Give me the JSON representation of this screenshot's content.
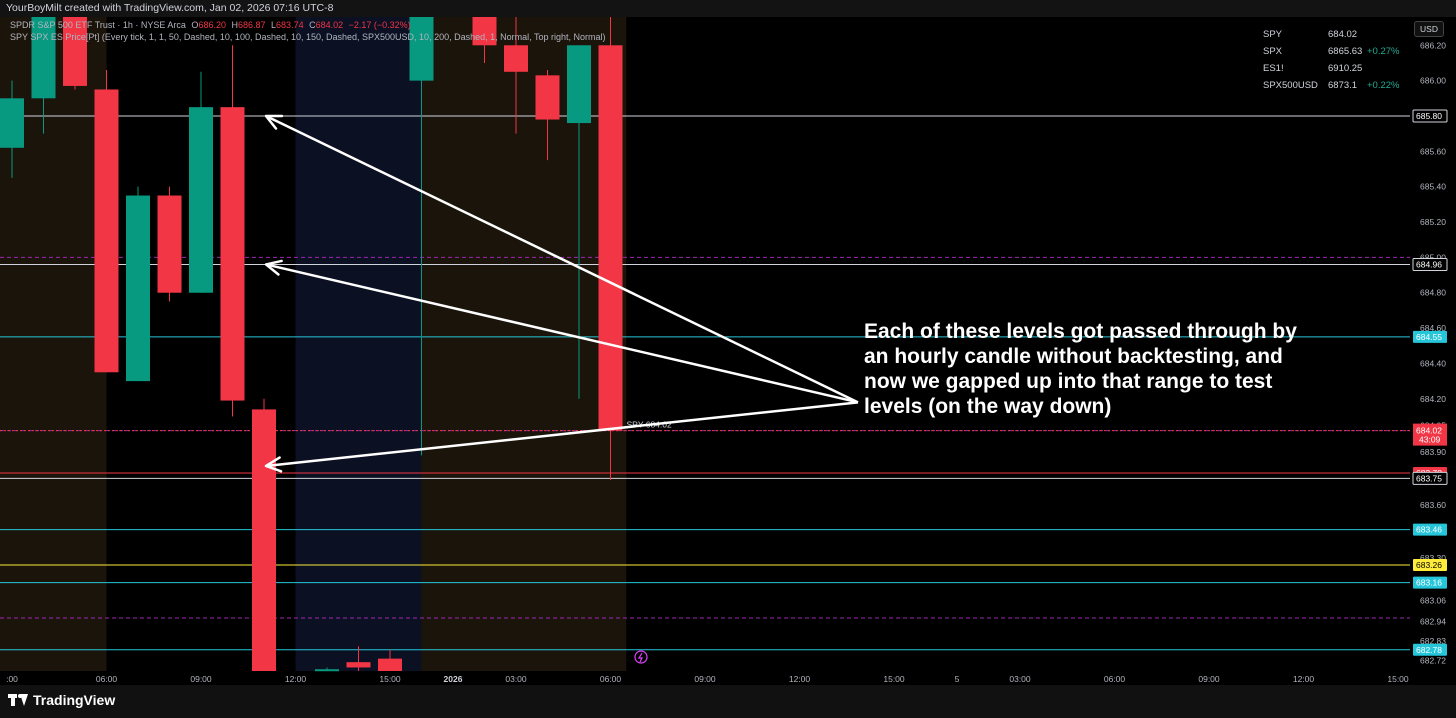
{
  "header": {
    "credit": "YourBoyMilt created with TradingView.com, Jan 02, 2026 07:16 UTC-8"
  },
  "legend": {
    "line1_title": "SPDR S&P 500 ETF Trust · 1h · NYSE Arca",
    "o_label": "O",
    "o": "686.20",
    "h_label": "H",
    "h": "686.87",
    "l_label": "L",
    "l": "683.74",
    "c_label": "C",
    "c": "684.02",
    "change": "−2.17 (−0.32%)",
    "line2": "SPY SPX ES Price[Pt] (Every tick, 1, 1, 50, Dashed, 10, 100, Dashed, 10, 150, Dashed, SPX500USD, 10, 200, Dashed, 1, Normal, Top right, Normal)"
  },
  "watchlist": [
    {
      "symbol": "SPY",
      "price": "684.02",
      "change": ""
    },
    {
      "symbol": "SPX",
      "price": "6865.63",
      "change": "+0.27%"
    },
    {
      "symbol": "ES1!",
      "price": "6910.25",
      "change": ""
    },
    {
      "symbol": "SPX500USD",
      "price": "6873.1",
      "change": "+0.22%"
    }
  ],
  "currency": "USD",
  "annotation": "Each of these levels got passed through by an hourly candle without backtesting, and now we gapped up into that range to test levels (on the way down)",
  "footer": {
    "brand": "TradingView"
  },
  "colors": {
    "up": "#089981",
    "down": "#f23645",
    "white_line": "#d1d4dc",
    "cyan_line": "#26c6da",
    "yellow_line": "#ffeb3b",
    "purple_dash": "#9c27b0"
  },
  "chart_data": {
    "type": "candlestick",
    "timeframe": "1h",
    "ylim": [
      682.66,
      686.36
    ],
    "y_ticks": [
      "686.20",
      "686.00",
      "685.80",
      "685.60",
      "685.40",
      "685.20",
      "685.00",
      "684.80",
      "684.60",
      "684.40",
      "684.20",
      "684.05",
      "683.90",
      "683.75",
      "683.60",
      "683.30",
      "683.06",
      "682.94",
      "682.83",
      "682.72"
    ],
    "x_ticks": [
      {
        "slot": 0,
        "label": ":00"
      },
      {
        "slot": 3,
        "label": "06:00"
      },
      {
        "slot": 6,
        "label": "09:00"
      },
      {
        "slot": 9,
        "label": "12:00"
      },
      {
        "slot": 12,
        "label": "15:00"
      },
      {
        "slot": 14,
        "label": "2026"
      },
      {
        "slot": 16,
        "label": "03:00"
      },
      {
        "slot": 19,
        "label": "06:00"
      },
      {
        "slot": 22,
        "label": "09:00"
      },
      {
        "slot": 25,
        "label": "12:00"
      },
      {
        "slot": 28,
        "label": "15:00"
      },
      {
        "slot": 30,
        "label": "5"
      },
      {
        "slot": 32,
        "label": "03:00"
      },
      {
        "slot": 35,
        "label": "06:00"
      },
      {
        "slot": 38,
        "label": "09:00"
      },
      {
        "slot": 41,
        "label": "12:00"
      },
      {
        "slot": 44,
        "label": "15:00"
      }
    ],
    "candles": [
      {
        "slot": 0,
        "o": 685.62,
        "h": 686.0,
        "l": 685.45,
        "c": 685.9
      },
      {
        "slot": 1,
        "o": 685.9,
        "h": 686.5,
        "l": 685.7,
        "c": 686.5
      },
      {
        "slot": 2,
        "o": 686.45,
        "h": 686.5,
        "l": 685.95,
        "c": 685.97
      },
      {
        "slot": 3,
        "o": 685.95,
        "h": 686.06,
        "l": 684.35,
        "c": 684.35
      },
      {
        "slot": 4,
        "o": 684.3,
        "h": 685.4,
        "l": 684.3,
        "c": 685.35
      },
      {
        "slot": 5,
        "o": 685.35,
        "h": 685.4,
        "l": 684.75,
        "c": 684.8
      },
      {
        "slot": 6,
        "o": 684.8,
        "h": 686.05,
        "l": 684.8,
        "c": 685.85
      },
      {
        "slot": 7,
        "o": 685.85,
        "h": 686.2,
        "l": 684.1,
        "c": 684.19
      },
      {
        "slot": 8,
        "o": 684.14,
        "h": 684.2,
        "l": 682.66,
        "c": 682.66
      },
      {
        "slot": 10,
        "o": 682.66,
        "h": 682.68,
        "l": 682.66,
        "c": 682.67
      },
      {
        "slot": 11,
        "o": 682.71,
        "h": 682.8,
        "l": 682.66,
        "c": 682.68
      },
      {
        "slot": 12,
        "o": 682.73,
        "h": 682.78,
        "l": 682.66,
        "c": 682.66
      },
      {
        "slot": 13,
        "o": 686.0,
        "h": 686.36,
        "l": 683.88,
        "c": 686.36
      },
      {
        "slot": 15,
        "o": 686.36,
        "h": 686.36,
        "l": 686.1,
        "c": 686.2
      },
      {
        "slot": 16,
        "o": 686.2,
        "h": 686.4,
        "l": 685.7,
        "c": 686.05
      },
      {
        "slot": 17,
        "o": 686.03,
        "h": 686.06,
        "l": 685.55,
        "c": 685.78
      },
      {
        "slot": 18,
        "o": 685.76,
        "h": 686.2,
        "l": 684.2,
        "c": 686.2
      },
      {
        "slot": 19,
        "o": 686.2,
        "h": 686.87,
        "l": 683.74,
        "c": 684.02
      }
    ],
    "levels": [
      {
        "price": 685.8,
        "label": "685.80",
        "color": "#d1d4dc",
        "style": "solid"
      },
      {
        "price": 684.96,
        "label": "684.96",
        "color": "#d1d4dc",
        "style": "solid"
      },
      {
        "price": 684.55,
        "label": "684.55",
        "color": "#26c6da",
        "style": "solid"
      },
      {
        "price": 683.78,
        "label": "683.78",
        "color": "#f23645",
        "style": "solid"
      },
      {
        "price": 683.75,
        "label": "683.75",
        "color": "#d1d4dc",
        "style": "solid"
      },
      {
        "price": 683.46,
        "label": "683.46",
        "color": "#26c6da",
        "style": "solid"
      },
      {
        "price": 683.26,
        "label": "683.26",
        "color": "#ffeb3b",
        "style": "solid"
      },
      {
        "price": 683.16,
        "label": "683.16",
        "color": "#26c6da",
        "style": "solid"
      },
      {
        "price": 682.78,
        "label": "682.78",
        "color": "#26c6da",
        "style": "solid"
      },
      {
        "price": 685.0,
        "label": "",
        "color": "#9c27b0",
        "style": "dashed"
      },
      {
        "price": 684.02,
        "label": "",
        "color": "#9c27b0",
        "style": "dashed"
      },
      {
        "price": 682.96,
        "label": "",
        "color": "#9c27b0",
        "style": "dashed"
      }
    ],
    "last_price": {
      "label": "684.02",
      "countdown": "43:09",
      "line_label": "SPY 684.02"
    },
    "sessions": [
      {
        "from_slot": -0.5,
        "to_slot": 3.0,
        "kind": "premarket"
      },
      {
        "from_slot": 9.0,
        "to_slot": 13.0,
        "kind": "afterhours"
      },
      {
        "from_slot": 13.0,
        "to_slot": 19.5,
        "kind": "premarket"
      }
    ],
    "arrows": [
      {
        "from_price": 684.18,
        "to_price": 685.8
      },
      {
        "from_price": 684.18,
        "to_price": 684.96
      },
      {
        "from_price": 684.18,
        "to_price": 683.82
      }
    ]
  }
}
